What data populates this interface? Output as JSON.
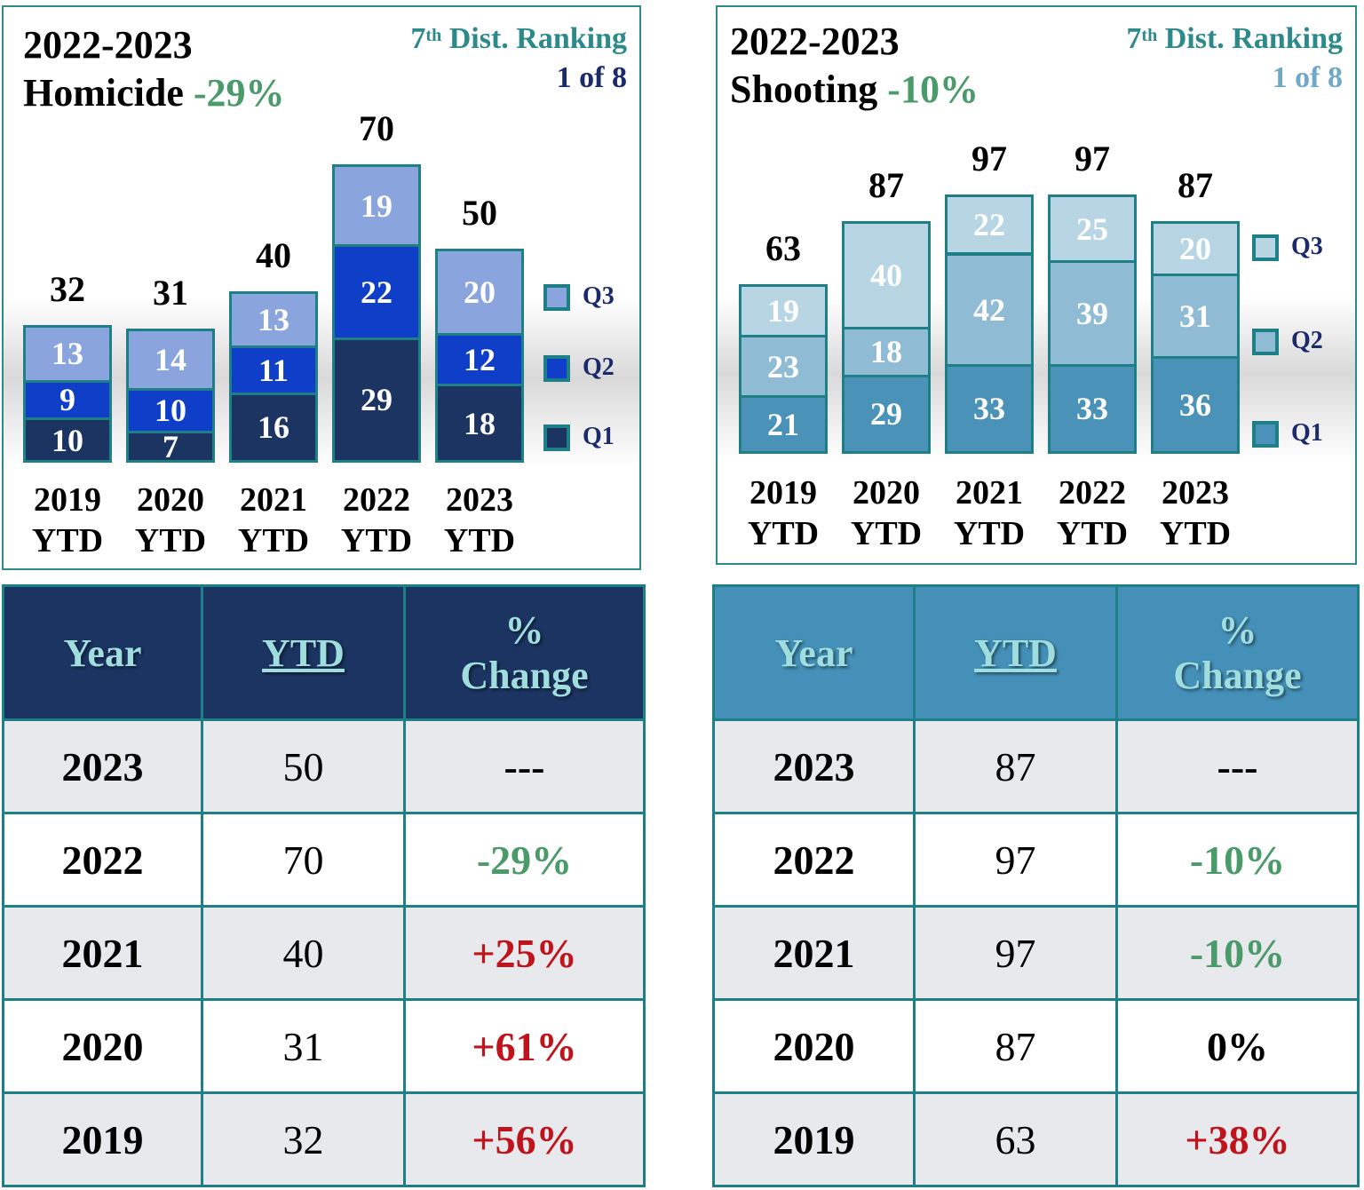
{
  "colors": {
    "hom_q1": "#1c3462",
    "hom_q2": "#0f3fc8",
    "hom_q3": "#8aa4dd",
    "sh_q1": "#4a92b8",
    "sh_q2": "#8fbcd4",
    "sh_q3": "#b8d5e4",
    "hom_header": "#1c3462",
    "sh_header": "#4490b8",
    "hom_rank": "#1a2a6a",
    "sh_rank": "#6fa8c8"
  },
  "chart_data": [
    {
      "type": "bar",
      "stacked": true,
      "title_line1": "2022-2023",
      "title_line2": "Homicide",
      "title_change": "-29%",
      "rank_prefix": "7",
      "rank_sup": "th",
      "rank_suffix": " Dist. Ranking",
      "rank_value": "1 of 8",
      "categories": [
        "2019",
        "2020",
        "2021",
        "2022",
        "2023"
      ],
      "category_sub": "YTD",
      "series": [
        {
          "name": "Q1",
          "values": [
            10,
            7,
            16,
            29,
            18
          ]
        },
        {
          "name": "Q2",
          "values": [
            9,
            10,
            11,
            22,
            12
          ]
        },
        {
          "name": "Q3",
          "values": [
            13,
            14,
            13,
            19,
            20
          ]
        }
      ],
      "totals": [
        32,
        31,
        40,
        70,
        50
      ],
      "legend": [
        "Q3",
        "Q2",
        "Q1"
      ]
    },
    {
      "type": "bar",
      "stacked": true,
      "title_line1": "2022-2023",
      "title_line2": "Shooting",
      "title_change": "-10%",
      "rank_prefix": "7",
      "rank_sup": "th",
      "rank_suffix": " Dist. Ranking",
      "rank_value": "1 of 8",
      "categories": [
        "2019",
        "2020",
        "2021",
        "2022",
        "2023"
      ],
      "category_sub": "YTD",
      "series": [
        {
          "name": "Q1",
          "values": [
            21,
            29,
            33,
            33,
            36
          ]
        },
        {
          "name": "Q2",
          "values": [
            23,
            18,
            42,
            39,
            31
          ]
        },
        {
          "name": "Q3",
          "values": [
            19,
            40,
            22,
            25,
            20
          ]
        }
      ],
      "totals": [
        63,
        87,
        97,
        97,
        87
      ],
      "legend": [
        "Q3",
        "Q2",
        "Q1"
      ]
    }
  ],
  "tables": {
    "homicide": {
      "headers": {
        "year": "Year",
        "ytd": "YTD",
        "change_line1": "%",
        "change_line2": "Change"
      },
      "rows": [
        {
          "year": "2023",
          "ytd": "50",
          "change": "---",
          "trend": "neu"
        },
        {
          "year": "2022",
          "ytd": "70",
          "change": "-29%",
          "trend": "neg"
        },
        {
          "year": "2021",
          "ytd": "40",
          "change": "+25%",
          "trend": "pos"
        },
        {
          "year": "2020",
          "ytd": "31",
          "change": "+61%",
          "trend": "pos"
        },
        {
          "year": "2019",
          "ytd": "32",
          "change": "+56%",
          "trend": "pos"
        }
      ]
    },
    "shooting": {
      "headers": {
        "year": "Year",
        "ytd": "YTD",
        "change_line1": "%",
        "change_line2": "Change"
      },
      "rows": [
        {
          "year": "2023",
          "ytd": "87",
          "change": "---",
          "trend": "neu"
        },
        {
          "year": "2022",
          "ytd": "97",
          "change": "-10%",
          "trend": "neg"
        },
        {
          "year": "2021",
          "ytd": "97",
          "change": "-10%",
          "trend": "neg"
        },
        {
          "year": "2020",
          "ytd": "87",
          "change": "0%",
          "trend": "neu"
        },
        {
          "year": "2019",
          "ytd": "63",
          "change": "+38%",
          "trend": "pos"
        }
      ]
    }
  }
}
